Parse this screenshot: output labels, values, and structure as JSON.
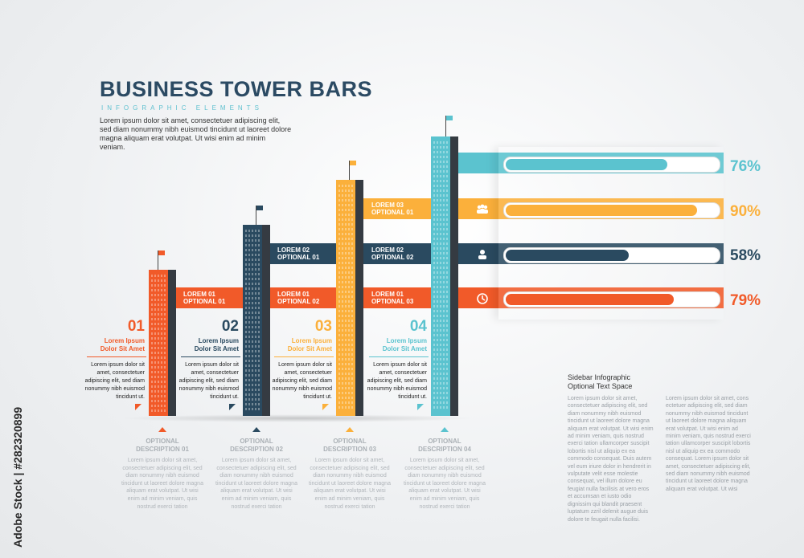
{
  "header": {
    "title": "BUSINESS TOWER BARS",
    "subtitle": "INFOGRAPHIC ELEMENTS",
    "intro": "Lorem ipsum dolor sit amet, consectetuer adipiscing elit, sed diam nonummy nibh euismod tincidunt ut laoreet dolore magna aliquam erat volutpat. Ut wisi enim ad minim veniam."
  },
  "colors": {
    "orange": "#f15a29",
    "navy": "#2a4a60",
    "yellow": "#fbb03b",
    "teal": "#5bc3cf"
  },
  "bands": {
    "orange": [
      "LOREM 01\nOPTIONAL 01",
      "LOREM 01\nOPTIONAL 02",
      "LOREM 01\nOPTIONAL 03"
    ],
    "navy": [
      "LOREM 02\nOPTIONAL 01",
      "LOREM 02\nOPTIONAL 02"
    ],
    "yellow": [
      "LOREM 03\nOPTIONAL 01"
    ]
  },
  "steps": [
    {
      "num": "01",
      "title": "Lorem Ipsum\nDolor Sit Amet",
      "text": "Lorem ipsum dolor sit amet, consectetuer adipiscing elit, sed diam nonummy nibh euismod tincidunt ut.",
      "opt_title": "OPTIONAL\nDESCRIPTION 01",
      "opt_text": "Lorem ipsum dolor sit amet, consectetuer adipiscing elit, sed diam nonummy nibh euismod tincidunt ut laoreet dolore magna aliquam erat volutpat. Ut wisi enim ad minim veniam, quis nostrud exerci tation"
    },
    {
      "num": "02",
      "title": "Lorem Ipsum\nDolor Sit Amet",
      "text": "Lorem ipsum dolor sit amet, consectetuer adipiscing elit, sed diam nonummy nibh euismod tincidunt ut.",
      "opt_title": "OPTIONAL\nDESCRIPTION 02",
      "opt_text": "Lorem ipsum dolor sit amet, consectetuer adipiscing elit, sed diam nonummy nibh euismod tincidunt ut laoreet dolore magna aliquam erat volutpat. Ut wisi enim ad minim veniam, quis nostrud exerci tation"
    },
    {
      "num": "03",
      "title": "Lorem Ipsum\nDolor Sit Amet",
      "text": "Lorem ipsum dolor sit amet, consectetuer adipiscing elit, sed diam nonummy nibh euismod tincidunt ut.",
      "opt_title": "OPTIONAL\nDESCRIPTION 03",
      "opt_text": "Lorem ipsum dolor sit amet, consectetuer adipiscing elit, sed diam nonummy nibh euismod tincidunt ut laoreet dolore magna aliquam erat volutpat. Ut wisi enim ad minim veniam, quis nostrud exerci tation"
    },
    {
      "num": "04",
      "title": "Lorem Ipsum\nDolor Sit Amet",
      "text": "Lorem ipsum dolor sit amet, consectetuer adipiscing elit, sed diam nonummy nibh euismod tincidunt ut.",
      "opt_title": "OPTIONAL\nDESCRIPTION 04",
      "opt_text": "Lorem ipsum dolor sit amet, consectetuer adipiscing elit, sed diam nonummy nibh euismod tincidunt ut laoreet dolore magna aliquam erat volutpat. Ut wisi enim ad minim veniam, quis nostrud exerci tation"
    }
  ],
  "bars": [
    {
      "label": "76%",
      "value": 0.76,
      "color": "#5bc3cf",
      "icon": "none"
    },
    {
      "label": "90%",
      "value": 0.9,
      "color": "#fbb03b",
      "icon": "people-icon"
    },
    {
      "label": "58%",
      "value": 0.58,
      "color": "#2a4a60",
      "icon": "user-icon"
    },
    {
      "label": "79%",
      "value": 0.79,
      "color": "#f15a29",
      "icon": "clock-icon"
    }
  ],
  "sidebar": {
    "title": "Sidebar Infographic\nOptional Text Space",
    "col1": "Lorem ipsum dolor sit amet, consectetuer adipiscing elit, sed diam nonummy nibh euismod tincidunt ut laoreet dolore magna aliquam erat volutpat. Ut wisi enim ad minim veniam, quis nostrud exerci tation ullamcorper suscipit lobortis nisl ut aliquip ex ea commodo consequat. Duis autem vel eum iriure dolor in hendrerit in vulputate velit esse molestie consequat, vel illum dolore eu feugiat nulla facilisis at vero eros et accumsan et iusto odio dignissim qui blandit praesent luptatum zzril delenit augue duis dolore te feugait nulla facilisi.",
    "col2": "Lorem ipsum dolor sit amet, cons ectetuer adipiscing elit, sed diam nonummy nibh euismod tincidunt ut laoreet dolore magna aliquam erat volutpat. Ut wisi enim ad minim veniam, quis nostrud exerci tation ullamcorper suscipit lobortis nisl ut aliquip ex ea commodo consequat. Lorem ipsum dolor sit amet, consectetuer adipiscing elit, sed diam nonummy nibh euismod tincidunt ut laoreet dolore magna aliquam erat volutpat. Ut wisi"
  },
  "watermark": "Adobe Stock | #282320899"
}
